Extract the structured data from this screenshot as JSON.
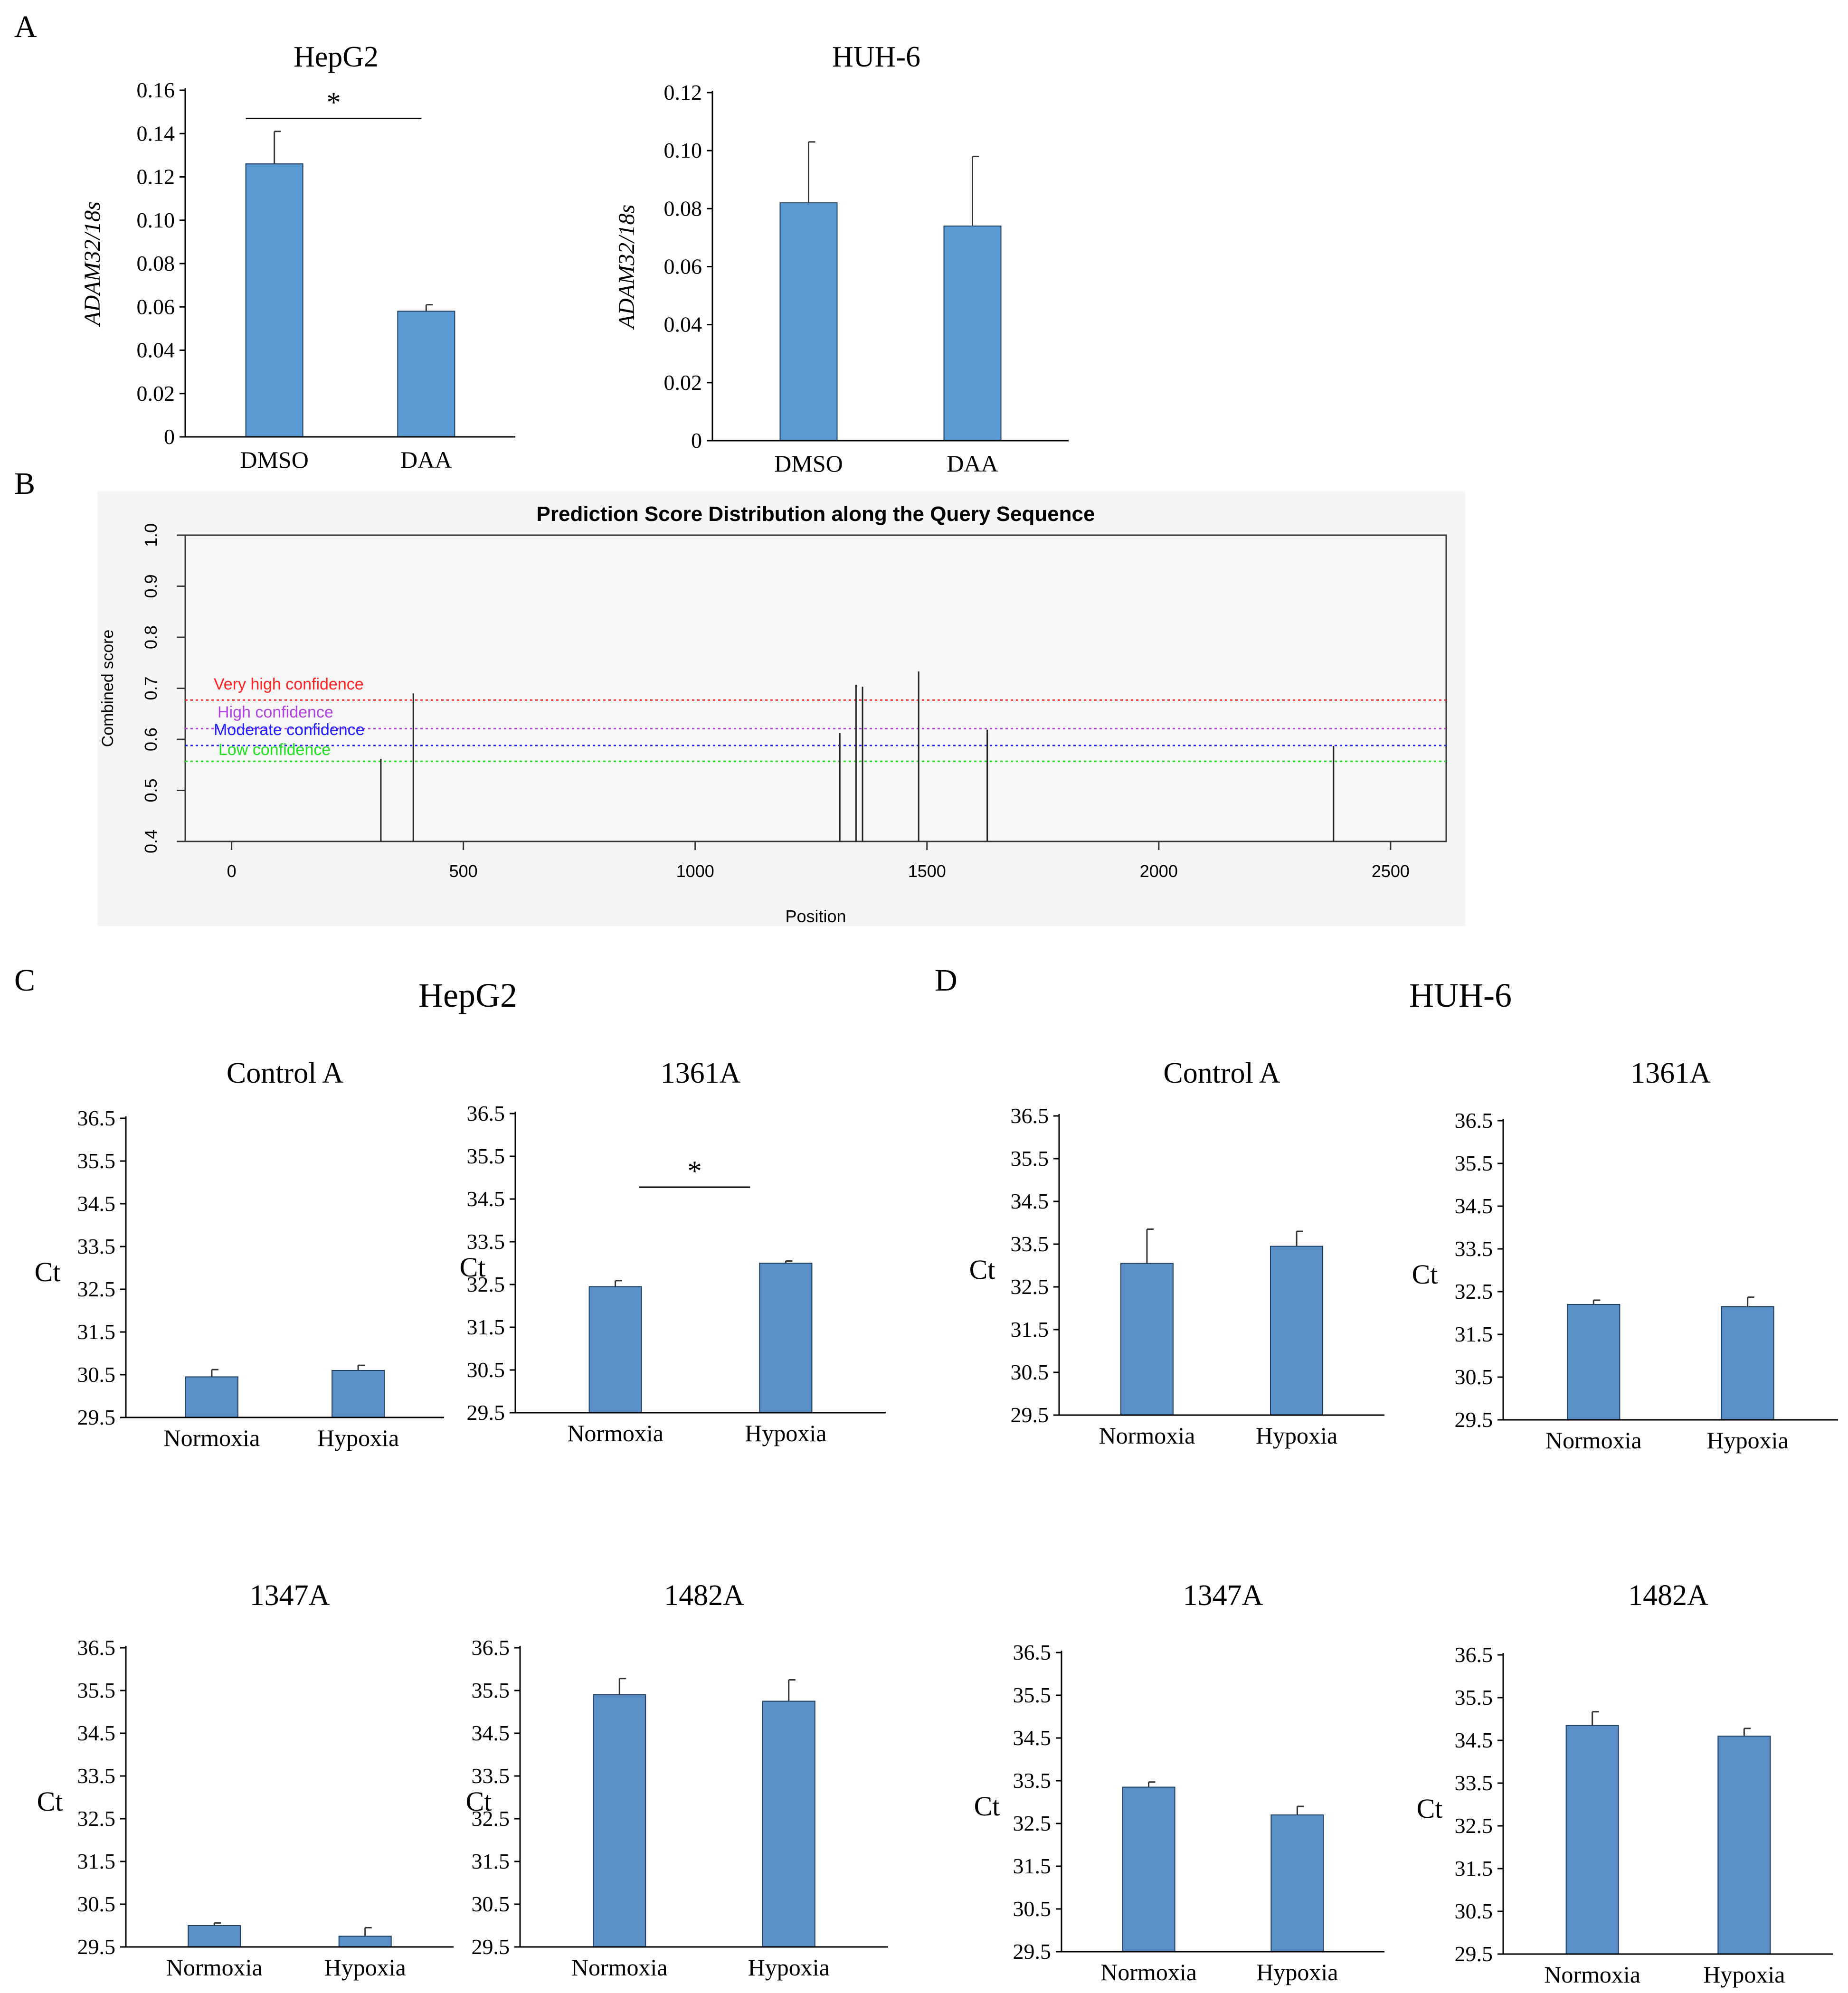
{
  "panel_labels": {
    "a": "A",
    "b": "B",
    "c": "C",
    "d": "D"
  },
  "group_titles": {
    "c": "HepG2",
    "d": "HUH-6"
  },
  "colors": {
    "bar": "#5b9bd5",
    "bar_dark": "#5a8fc7",
    "axis": "#000000",
    "err": "#333333"
  },
  "chart_data": [
    {
      "id": "a1",
      "type": "bar",
      "title": "HepG2",
      "ylabel": "ADAM32/18s",
      "categories": [
        "DMSO",
        "DAA"
      ],
      "values": [
        0.126,
        0.058
      ],
      "errors": [
        0.015,
        0.003
      ],
      "ylim": [
        0,
        0.16
      ],
      "yticks": [
        "0",
        "0.02",
        "0.04",
        "0.06",
        "0.08",
        "0.10",
        "0.12",
        "0.14",
        "0.16"
      ],
      "significance": "*"
    },
    {
      "id": "a2",
      "type": "bar",
      "title": "HUH-6",
      "ylabel": "ADAM32/18s",
      "categories": [
        "DMSO",
        "DAA"
      ],
      "values": [
        0.082,
        0.074
      ],
      "errors": [
        0.021,
        0.024
      ],
      "ylim": [
        0,
        0.12
      ],
      "yticks": [
        "0",
        "0.02",
        "0.04",
        "0.06",
        "0.08",
        "0.10",
        "0.12"
      ]
    },
    {
      "id": "b",
      "type": "bar",
      "title": "Prediction Score Distribution along the Query Sequence",
      "xlabel": "Position",
      "ylabel": "Combined score",
      "xlim": [
        -100,
        2620
      ],
      "ylim": [
        0.4,
        1.0
      ],
      "xticks": [
        "0",
        "500",
        "1000",
        "1500",
        "2000",
        "2500"
      ],
      "yticks": [
        "0.4",
        "0.5",
        "0.6",
        "0.7",
        "0.8",
        "0.9",
        "1.0"
      ],
      "x": [
        322,
        392,
        1312,
        1347,
        1361,
        1482,
        1630,
        2377
      ],
      "values": [
        0.562,
        0.69,
        0.612,
        0.707,
        0.703,
        0.733,
        0.619,
        0.587
      ],
      "thresholds": [
        {
          "label": "Very high confidence",
          "value": 0.677,
          "color": "#ff2020"
        },
        {
          "label": "High confidence",
          "value": 0.621,
          "color": "#b040e0"
        },
        {
          "label": "Moderate confidence",
          "value": 0.588,
          "color": "#2020ff"
        },
        {
          "label": "Low confidence",
          "value": 0.557,
          "color": "#20e020"
        }
      ]
    },
    {
      "id": "c1",
      "type": "bar",
      "title": "Control A",
      "ylabel": "Ct",
      "categories": [
        "Normoxia",
        "Hypoxia"
      ],
      "values": [
        30.45,
        30.6
      ],
      "errors": [
        0.17,
        0.12
      ],
      "ylim": [
        29.5,
        36.5
      ],
      "yticks": [
        "29.5",
        "30.5",
        "31.5",
        "32.5",
        "33.5",
        "34.5",
        "35.5",
        "36.5"
      ]
    },
    {
      "id": "c2",
      "type": "bar",
      "title": "1361A",
      "ylabel": "Ct",
      "categories": [
        "Normoxia",
        "Hypoxia"
      ],
      "values": [
        32.45,
        33.0
      ],
      "errors": [
        0.14,
        0.05
      ],
      "ylim": [
        29.5,
        36.5
      ],
      "yticks": [
        "29.5",
        "30.5",
        "31.5",
        "32.5",
        "33.5",
        "34.5",
        "35.5",
        "36.5"
      ],
      "significance": "*"
    },
    {
      "id": "c3",
      "type": "bar",
      "title": "1347A",
      "ylabel": "Ct",
      "categories": [
        "Normoxia",
        "Hypoxia"
      ],
      "values": [
        30.0,
        29.75
      ],
      "errors": [
        0.06,
        0.2
      ],
      "ylim": [
        29.5,
        36.5
      ],
      "yticks": [
        "29.5",
        "30.5",
        "31.5",
        "32.5",
        "33.5",
        "34.5",
        "35.5",
        "36.5"
      ]
    },
    {
      "id": "c4",
      "type": "bar",
      "title": "1482A",
      "ylabel": "Ct",
      "categories": [
        "Normoxia",
        "Hypoxia"
      ],
      "values": [
        35.4,
        35.25
      ],
      "errors": [
        0.38,
        0.5
      ],
      "ylim": [
        29.5,
        36.5
      ],
      "yticks": [
        "29.5",
        "30.5",
        "31.5",
        "32.5",
        "33.5",
        "34.5",
        "35.5",
        "36.5"
      ]
    },
    {
      "id": "d1",
      "type": "bar",
      "title": "Control A",
      "ylabel": "Ct",
      "categories": [
        "Normoxia",
        "Hypoxia"
      ],
      "values": [
        33.05,
        33.45
      ],
      "errors": [
        0.8,
        0.35
      ],
      "ylim": [
        29.5,
        36.5
      ],
      "yticks": [
        "29.5",
        "30.5",
        "31.5",
        "32.5",
        "33.5",
        "34.5",
        "35.5",
        "36.5"
      ]
    },
    {
      "id": "d2",
      "type": "bar",
      "title": "1361A",
      "ylabel": "Ct",
      "categories": [
        "Normoxia",
        "Hypoxia"
      ],
      "values": [
        32.2,
        32.15
      ],
      "errors": [
        0.1,
        0.22
      ],
      "ylim": [
        29.5,
        36.5
      ],
      "yticks": [
        "29.5",
        "30.5",
        "31.5",
        "32.5",
        "33.5",
        "34.5",
        "35.5",
        "36.5"
      ]
    },
    {
      "id": "d3",
      "type": "bar",
      "title": "1347A",
      "ylabel": "Ct",
      "categories": [
        "Normoxia",
        "Hypoxia"
      ],
      "values": [
        33.35,
        32.7
      ],
      "errors": [
        0.12,
        0.2
      ],
      "ylim": [
        29.5,
        36.5
      ],
      "yticks": [
        "29.5",
        "30.5",
        "31.5",
        "32.5",
        "33.5",
        "34.5",
        "35.5",
        "36.5"
      ]
    },
    {
      "id": "d4",
      "type": "bar",
      "title": "1482A",
      "ylabel": "Ct",
      "categories": [
        "Normoxia",
        "Hypoxia"
      ],
      "values": [
        34.85,
        34.6
      ],
      "errors": [
        0.32,
        0.18
      ],
      "ylim": [
        29.5,
        36.5
      ],
      "yticks": [
        "29.5",
        "30.5",
        "31.5",
        "32.5",
        "33.5",
        "34.5",
        "35.5",
        "36.5"
      ]
    }
  ]
}
